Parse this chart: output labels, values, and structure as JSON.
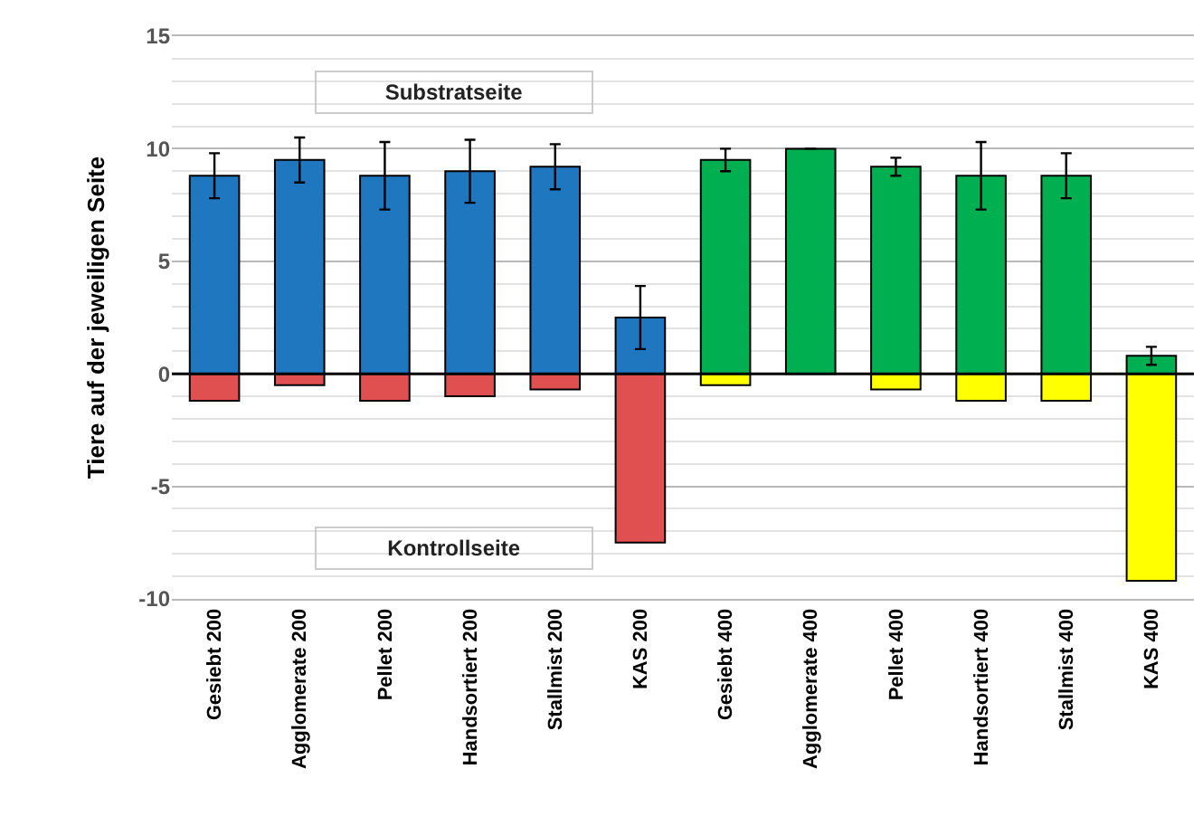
{
  "chart_data": {
    "type": "bar",
    "stacked": true,
    "ylabel": "Tiere auf der jeweiligen Seite",
    "categories": [
      "Gesiebt 200",
      "Agglomerate 200",
      "Pellet 200",
      "Handsortiert 200",
      "Stallmist 200",
      "KAS 200",
      "Gesiebt 400",
      "Agglomerate 400",
      "Pellet 400",
      "Handsortiert 400",
      "Stallmist 400",
      "KAS 400"
    ],
    "series": [
      {
        "colors": [
          "#1f77c0",
          "#1f77c0",
          "#1f77c0",
          "#1f77c0",
          "#1f77c0",
          "#1f77c0",
          "#00b050",
          "#00b050",
          "#00b050",
          "#00b050",
          "#00b050",
          "#00b050"
        ],
        "values": [
          8.8,
          9.5,
          8.8,
          9.0,
          9.2,
          2.5,
          9.5,
          10.0,
          9.2,
          8.8,
          8.8,
          0.8
        ],
        "errors": [
          1.0,
          1.0,
          1.5,
          1.4,
          1.0,
          1.4,
          0.5,
          null,
          0.4,
          1.5,
          1.0,
          0.4
        ]
      },
      {
        "colors": [
          "#e05050",
          "#e05050",
          "#e05050",
          "#e05050",
          "#e05050",
          "#e05050",
          "#ffff00",
          "#ffff00",
          "#ffff00",
          "#ffff00",
          "#ffff00",
          "#ffff00"
        ],
        "values": [
          -1.2,
          -0.5,
          -1.2,
          -1.0,
          -0.7,
          -7.5,
          -0.5,
          null,
          -0.7,
          -1.2,
          -1.2,
          -9.2
        ]
      }
    ],
    "annotations": [
      "Substratseite",
      "Kontrollseite"
    ],
    "ref_lines": [
      {
        "axis": "y",
        "value": 0,
        "color": "#000000"
      }
    ],
    "ylim": [
      -10,
      15
    ],
    "yticks": [
      -10,
      -5,
      0,
      5,
      10,
      15
    ],
    "grid": "y"
  }
}
